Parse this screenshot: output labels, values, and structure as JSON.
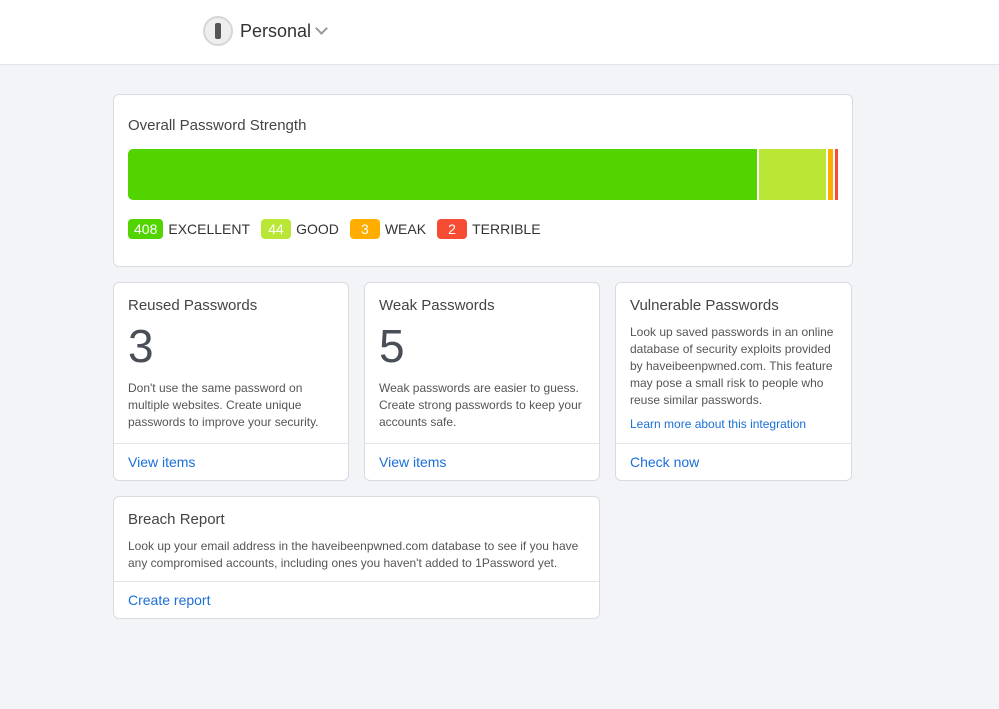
{
  "header": {
    "account_name": "Personal",
    "icon": "1password-logo",
    "chevron": "chevron-down-icon"
  },
  "strength": {
    "title": "Overall Password Strength",
    "levels": [
      {
        "count": "408",
        "label": "EXCELLENT",
        "color": "#52d400"
      },
      {
        "count": "44",
        "label": "GOOD",
        "color": "#bae735"
      },
      {
        "count": "3",
        "label": "WEAK",
        "color": "#ffae00"
      },
      {
        "count": "2",
        "label": "TERRIBLE",
        "color": "#f54c33"
      }
    ]
  },
  "reused": {
    "title": "Reused Passwords",
    "count": "3",
    "desc": "Don't use the same password on multiple websites. Create unique passwords to improve your security.",
    "link": "View items"
  },
  "weak": {
    "title": "Weak Passwords",
    "count": "5",
    "desc": "Weak passwords are easier to guess. Create strong passwords to keep your accounts safe.",
    "link": "View items"
  },
  "vulnerable": {
    "title": "Vulnerable Passwords",
    "desc": "Look up saved passwords in an online database of security exploits provided by haveibeenpwned.com. This feature may pose a small risk to people who reuse similar passwords.",
    "learn_more": "Learn more about this integration",
    "link": "Check now"
  },
  "breach": {
    "title": "Breach Report",
    "desc": "Look up your email address in the haveibeenpwned.com database to see if you have any compromised accounts, including ones you haven't added to 1Password yet.",
    "link": "Create report"
  }
}
